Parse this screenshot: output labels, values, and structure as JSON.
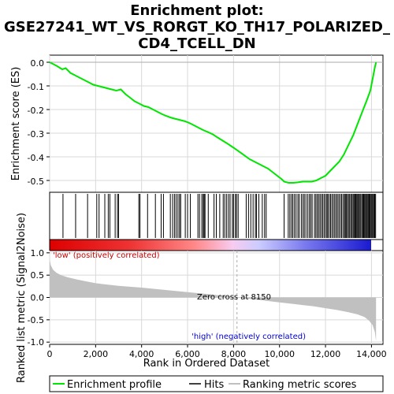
{
  "chart_data": {
    "type": "line",
    "title_lines": [
      "Enrichment plot:",
      "GSE27241_WT_VS_RORGT_KO_TH17_POLARIZED_",
      "CD4_TCELL_DN"
    ],
    "ylabel_top": "Enrichment score (ES)",
    "ylabel_bottom": "Ranked list metric (Signal2Noise)",
    "xlabel": "Rank in Ordered Dataset",
    "x_range": [
      0,
      14500
    ],
    "x_ticks": [
      0,
      2000,
      4000,
      6000,
      8000,
      10000,
      12000,
      14000
    ],
    "x_tick_labels": [
      "0",
      "2,000",
      "4,000",
      "6,000",
      "8,000",
      "10,000",
      "12,000",
      "14,000"
    ],
    "es_range": [
      -0.55,
      0.03
    ],
    "es_ticks": [
      0.0,
      -0.1,
      -0.2,
      -0.3,
      -0.4,
      -0.5
    ],
    "es_tick_labels": [
      "0.0",
      "-0.1",
      "-0.2",
      "-0.3",
      "-0.4",
      "-0.5"
    ],
    "metric_range": [
      -1.05,
      1.05
    ],
    "metric_ticks": [
      1.0,
      0.5,
      0.0,
      -0.5,
      -1.0
    ],
    "metric_tick_labels": [
      "1.0",
      "0.5",
      "0.0",
      "-0.5",
      "-1.0"
    ],
    "series": [
      {
        "name": "Enrichment profile",
        "x": [
          0,
          300,
          550,
          700,
          900,
          1100,
          1300,
          1500,
          1700,
          1900,
          2100,
          2300,
          2500,
          2700,
          2900,
          3100,
          3300,
          3500,
          3700,
          3900,
          4100,
          4300,
          4500,
          4700,
          4900,
          5100,
          5300,
          5500,
          5700,
          5900,
          6100,
          6300,
          6500,
          6700,
          6900,
          7100,
          7300,
          7500,
          7700,
          7900,
          8100,
          8300,
          8500,
          8700,
          8900,
          9100,
          9300,
          9500,
          9700,
          9900,
          10100,
          10200,
          10400,
          10600,
          10800,
          11000,
          11200,
          11400,
          11600,
          11800,
          12000,
          12200,
          12400,
          12600,
          12800,
          13000,
          13200,
          13400,
          13600,
          13800,
          13950,
          14050,
          14150,
          14200
        ],
        "y": [
          0.0,
          -0.015,
          -0.03,
          -0.025,
          -0.045,
          -0.055,
          -0.065,
          -0.075,
          -0.085,
          -0.095,
          -0.1,
          -0.105,
          -0.11,
          -0.115,
          -0.12,
          -0.115,
          -0.135,
          -0.15,
          -0.165,
          -0.175,
          -0.185,
          -0.19,
          -0.2,
          -0.21,
          -0.22,
          -0.228,
          -0.235,
          -0.24,
          -0.245,
          -0.25,
          -0.258,
          -0.268,
          -0.278,
          -0.288,
          -0.296,
          -0.305,
          -0.318,
          -0.33,
          -0.342,
          -0.355,
          -0.368,
          -0.382,
          -0.396,
          -0.41,
          -0.42,
          -0.43,
          -0.44,
          -0.45,
          -0.465,
          -0.48,
          -0.495,
          -0.505,
          -0.51,
          -0.51,
          -0.508,
          -0.505,
          -0.505,
          -0.505,
          -0.5,
          -0.49,
          -0.48,
          -0.46,
          -0.44,
          -0.42,
          -0.39,
          -0.35,
          -0.31,
          -0.26,
          -0.21,
          -0.16,
          -0.12,
          -0.07,
          -0.02,
          0.0
        ]
      }
    ],
    "hits": [
      580,
      1130,
      1650,
      2050,
      2150,
      2400,
      2550,
      2620,
      2850,
      2950,
      3000,
      3880,
      3930,
      4260,
      4600,
      4850,
      4950,
      5250,
      5350,
      5430,
      5500,
      5580,
      5650,
      5700,
      5900,
      6000,
      6120,
      6450,
      6520,
      6620,
      6680,
      6720,
      6760,
      6900,
      7150,
      7250,
      7400,
      7550,
      7620,
      7700,
      7780,
      7850,
      7950,
      8000,
      8080,
      8130,
      8200,
      8550,
      8650,
      8750,
      8850,
      8950,
      9000,
      9100,
      9250,
      9350,
      9420,
      10200,
      10380,
      10450,
      10520,
      10580,
      10650,
      10720,
      10800,
      10860,
      10950,
      11020,
      11080,
      11150,
      11230,
      11300,
      11360,
      11420,
      11520,
      11580,
      11640,
      11700,
      11760,
      11820,
      11880,
      11940,
      12000,
      12060,
      12100,
      12160,
      12220,
      12280,
      12340,
      12400,
      12460,
      12520,
      12580,
      12640,
      12700,
      12760,
      12820,
      12860,
      12900,
      12950,
      13000,
      13050,
      13100,
      13150,
      13200,
      13240,
      13280,
      13320,
      13360,
      13400,
      13440,
      13480,
      13530,
      13580,
      13620,
      13660,
      13700,
      13740,
      13780,
      13820,
      13860,
      13900,
      13940,
      13980,
      14020,
      14060,
      14100,
      14140,
      14180
    ],
    "metric_curve": {
      "x": [
        0,
        50,
        150,
        300,
        500,
        800,
        1200,
        1600,
        2000,
        3000,
        4000,
        5000,
        6000,
        7000,
        7500,
        8000,
        8150,
        8500,
        9000,
        9500,
        10000,
        10500,
        11000,
        11500,
        12000,
        12500,
        13000,
        13400,
        13700,
        13900,
        14050,
        14150,
        14200
      ],
      "y": [
        0.85,
        0.72,
        0.62,
        0.55,
        0.5,
        0.45,
        0.4,
        0.36,
        0.32,
        0.26,
        0.22,
        0.17,
        0.12,
        0.07,
        0.04,
        0.01,
        0.0,
        -0.02,
        -0.05,
        -0.08,
        -0.11,
        -0.14,
        -0.17,
        -0.2,
        -0.24,
        -0.28,
        -0.33,
        -0.38,
        -0.44,
        -0.52,
        -0.62,
        -0.78,
        -0.98
      ]
    },
    "annotations": {
      "low_label": "'low' (positively correlated)",
      "high_label": "'high' (negatively correlated)",
      "zero_cross_label": "Zero cross at 8150",
      "zero_cross_x": 8150
    },
    "legend": {
      "placement": "bottom",
      "entries": [
        "Enrichment profile",
        "Hits",
        "Ranking metric scores"
      ]
    },
    "colors": {
      "es_line": "#00e600",
      "hit": "#000000",
      "metric_fill": "#c0c0c0",
      "low_text": "#cc0000",
      "high_text": "#0000cc",
      "grid": "#d9d9d9",
      "zero_line": "#aaaaaa"
    },
    "grid": true
  }
}
